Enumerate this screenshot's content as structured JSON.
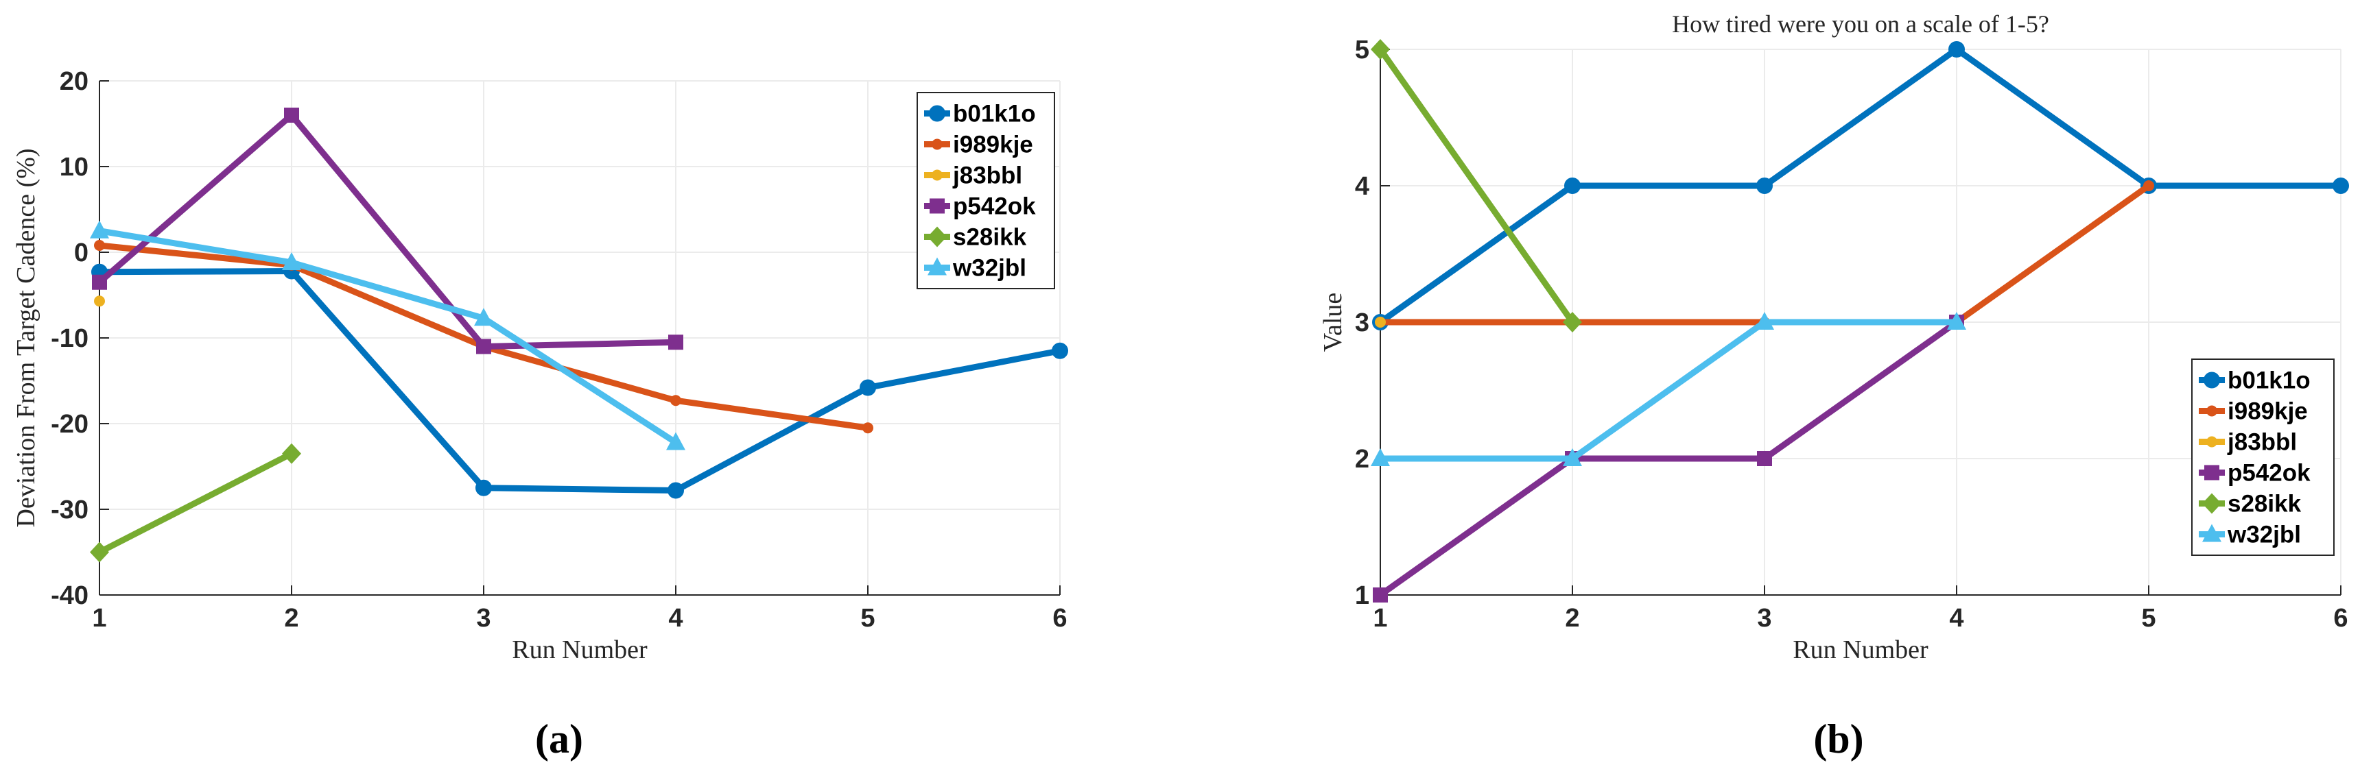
{
  "chart_data": [
    {
      "type": "line",
      "title": "",
      "caption": "(a)",
      "xlabel": "Run Number",
      "ylabel": "Deviation From Target Cadence (%)",
      "xlim": [
        1,
        6
      ],
      "ylim": [
        -40,
        20
      ],
      "xticks": [
        1,
        2,
        3,
        4,
        5,
        6
      ],
      "yticks": [
        -40,
        -30,
        -20,
        -10,
        0,
        10,
        20
      ],
      "xtick_labels": [
        "1",
        "2",
        "3",
        "4",
        "5",
        "6"
      ],
      "ytick_labels": [
        "-40",
        "-30",
        "-20",
        "-10",
        "0",
        "10",
        "20"
      ],
      "grid": true,
      "legend_position": "top-right",
      "series": [
        {
          "name": "b01k1o",
          "color": "#0072BD",
          "marker": "circle",
          "x": [
            1,
            2,
            3,
            4,
            5,
            6
          ],
          "values": [
            -2.3,
            -2.2,
            -27.5,
            -27.8,
            -15.8,
            -11.5
          ]
        },
        {
          "name": "i989kje",
          "color": "#D95319",
          "marker": "dot",
          "x": [
            1,
            2,
            3,
            4,
            5
          ],
          "values": [
            0.8,
            -1.5,
            -11,
            -17.3,
            -20.5
          ]
        },
        {
          "name": "j83bbl",
          "color": "#EDB120",
          "marker": "dot",
          "x": [
            1
          ],
          "values": [
            -5.7
          ]
        },
        {
          "name": "p542ok",
          "color": "#7E2F8E",
          "marker": "square",
          "x": [
            1,
            2,
            3,
            4
          ],
          "values": [
            -3.5,
            16,
            -11,
            -10.5
          ]
        },
        {
          "name": "s28ikk",
          "color": "#77AC30",
          "marker": "diamond",
          "x": [
            1,
            2
          ],
          "values": [
            -35,
            -23.5
          ]
        },
        {
          "name": "w32jbl",
          "color": "#4DBEEE",
          "marker": "triangle",
          "x": [
            1,
            2,
            3,
            4
          ],
          "values": [
            2.5,
            -1.2,
            -7.7,
            -22.2
          ]
        }
      ]
    },
    {
      "type": "line",
      "title": "How tired were you on a scale of 1-5?",
      "caption": "(b)",
      "xlabel": "Run Number",
      "ylabel": "Value",
      "xlim": [
        1,
        6
      ],
      "ylim": [
        1,
        5
      ],
      "xticks": [
        1,
        2,
        3,
        4,
        5,
        6
      ],
      "yticks": [
        1,
        2,
        3,
        4,
        5
      ],
      "xtick_labels": [
        "1",
        "2",
        "3",
        "4",
        "5",
        "6"
      ],
      "ytick_labels": [
        "1",
        "2",
        "3",
        "4",
        "5"
      ],
      "grid": true,
      "legend_position": "bottom-right",
      "series": [
        {
          "name": "b01k1o",
          "color": "#0072BD",
          "marker": "circle",
          "x": [
            1,
            2,
            3,
            4,
            5,
            6
          ],
          "values": [
            3,
            4,
            4,
            5,
            4,
            4
          ]
        },
        {
          "name": "i989kje",
          "color": "#D95319",
          "marker": "dot",
          "x": [
            1,
            2,
            3,
            4,
            5
          ],
          "values": [
            3,
            3,
            3,
            3,
            4
          ]
        },
        {
          "name": "j83bbl",
          "color": "#EDB120",
          "marker": "dot",
          "x": [
            1
          ],
          "values": [
            3
          ]
        },
        {
          "name": "p542ok",
          "color": "#7E2F8E",
          "marker": "square",
          "x": [
            1,
            2,
            3,
            4
          ],
          "values": [
            1,
            2,
            2,
            3
          ]
        },
        {
          "name": "s28ikk",
          "color": "#77AC30",
          "marker": "diamond",
          "x": [
            1,
            2
          ],
          "values": [
            5,
            3
          ]
        },
        {
          "name": "w32jbl",
          "color": "#4DBEEE",
          "marker": "triangle",
          "x": [
            1,
            2,
            3,
            4
          ],
          "values": [
            2,
            2,
            3,
            3
          ]
        }
      ]
    }
  ]
}
